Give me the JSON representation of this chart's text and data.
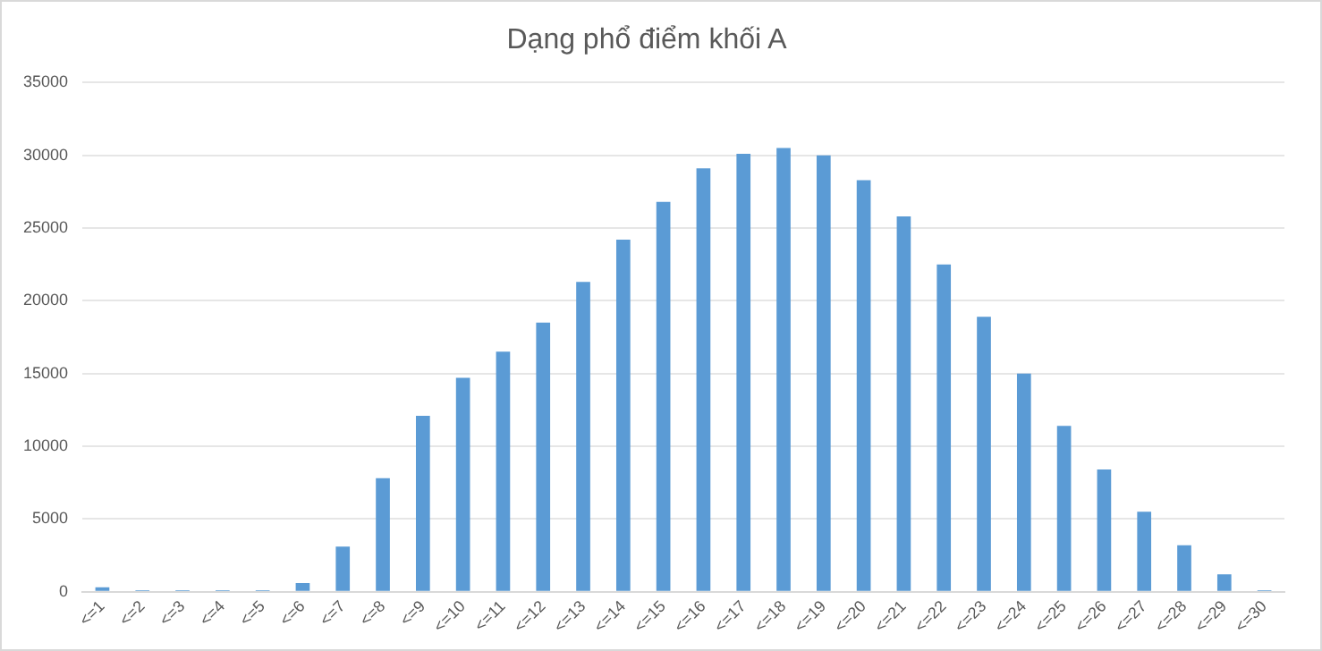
{
  "chart_data": {
    "type": "bar",
    "title": "Dạng phổ điểm khối A",
    "categories": [
      "<=1",
      "<=2",
      "<=3",
      "<=4",
      "<=5",
      "<=6",
      "<=7",
      "<=8",
      "<=9",
      "<=10",
      "<=11",
      "<=12",
      "<=13",
      "<=14",
      "<=15",
      "<=16",
      "<=17",
      "<=18",
      "<=19",
      "<=20",
      "<=21",
      "<=22",
      "<=23",
      "<=24",
      "<=25",
      "<=26",
      "<=27",
      "<=28",
      "<=29",
      "<=30"
    ],
    "values": [
      300,
      100,
      100,
      100,
      100,
      600,
      3100,
      7800,
      12100,
      14700,
      16500,
      18500,
      21300,
      24200,
      26800,
      29100,
      30100,
      30500,
      30000,
      28300,
      25800,
      22500,
      18900,
      15000,
      11400,
      8400,
      5500,
      3200,
      1200,
      100
    ],
    "color": "#5b9bd5",
    "ylim": [
      0,
      35000
    ],
    "yticks": [
      0,
      5000,
      10000,
      15000,
      20000,
      25000,
      30000,
      35000
    ],
    "grid": "y",
    "legend": false
  }
}
